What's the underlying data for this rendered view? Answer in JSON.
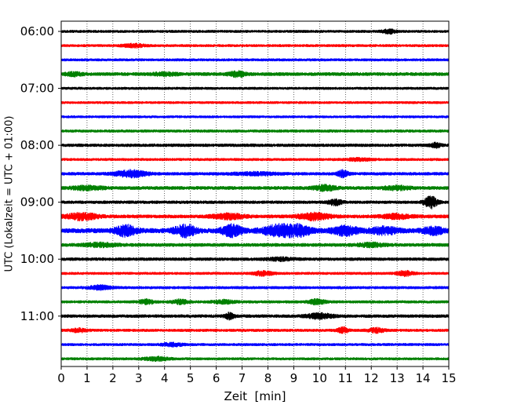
{
  "chart_data": {
    "type": "line",
    "title": "",
    "xlabel": "Zeit  [min]",
    "ylabel": "UTC (Lokalzeit = UTC + 01:00)",
    "xlim": [
      0,
      15
    ],
    "x_ticks": [
      "0",
      "1",
      "2",
      "3",
      "4",
      "5",
      "6",
      "7",
      "8",
      "9",
      "10",
      "11",
      "12",
      "13",
      "14",
      "15"
    ],
    "y_ticks": [
      "06:00",
      "07:00",
      "08:00",
      "09:00",
      "10:00",
      "11:00"
    ],
    "grid": {
      "x": "dotted",
      "y": "none"
    },
    "trace_interval_minutes": 15,
    "color_cycle": [
      "#000000",
      "#ff0000",
      "#0000ff",
      "#008000"
    ],
    "series": [
      {
        "start": "06:00",
        "color": "#000000",
        "amp": 1.5,
        "events": [
          {
            "t": 12.7,
            "a": 2.5,
            "w": 0.25
          }
        ]
      },
      {
        "start": "06:15",
        "color": "#ff0000",
        "amp": 1.5,
        "events": [
          {
            "t": 2.8,
            "a": 2.0,
            "w": 0.4
          }
        ]
      },
      {
        "start": "06:30",
        "color": "#0000ff",
        "amp": 1.5,
        "events": []
      },
      {
        "start": "06:45",
        "color": "#008000",
        "amp": 2.0,
        "events": [
          {
            "t": 0.5,
            "a": 2.0,
            "w": 0.3
          },
          {
            "t": 6.8,
            "a": 3.0,
            "w": 0.3
          },
          {
            "t": 4.0,
            "a": 1.5,
            "w": 0.5
          }
        ]
      },
      {
        "start": "07:00",
        "color": "#000000",
        "amp": 1.5,
        "events": []
      },
      {
        "start": "07:15",
        "color": "#ff0000",
        "amp": 1.4,
        "events": []
      },
      {
        "start": "07:30",
        "color": "#0000ff",
        "amp": 1.4,
        "events": []
      },
      {
        "start": "07:45",
        "color": "#008000",
        "amp": 1.6,
        "events": []
      },
      {
        "start": "08:00",
        "color": "#000000",
        "amp": 1.8,
        "events": [
          {
            "t": 14.5,
            "a": 2.5,
            "w": 0.2
          }
        ]
      },
      {
        "start": "08:15",
        "color": "#ff0000",
        "amp": 1.5,
        "events": [
          {
            "t": 11.5,
            "a": 1.5,
            "w": 0.5
          }
        ]
      },
      {
        "start": "08:30",
        "color": "#0000ff",
        "amp": 1.8,
        "events": [
          {
            "t": 2.7,
            "a": 4.0,
            "w": 0.6
          },
          {
            "t": 10.9,
            "a": 4.0,
            "w": 0.2
          },
          {
            "t": 7.5,
            "a": 1.5,
            "w": 0.8
          }
        ]
      },
      {
        "start": "08:45",
        "color": "#008000",
        "amp": 2.0,
        "events": [
          {
            "t": 1.0,
            "a": 2.0,
            "w": 0.6
          },
          {
            "t": 10.2,
            "a": 3.0,
            "w": 0.4
          },
          {
            "t": 13.0,
            "a": 2.0,
            "w": 0.5
          }
        ]
      },
      {
        "start": "09:00",
        "color": "#000000",
        "amp": 1.8,
        "events": [
          {
            "t": 10.6,
            "a": 3.5,
            "w": 0.25
          },
          {
            "t": 14.3,
            "a": 7.0,
            "w": 0.25
          }
        ]
      },
      {
        "start": "09:15",
        "color": "#ff0000",
        "amp": 2.0,
        "events": [
          {
            "t": 0.8,
            "a": 4.0,
            "w": 0.6
          },
          {
            "t": 6.5,
            "a": 3.0,
            "w": 0.6
          },
          {
            "t": 9.8,
            "a": 4.0,
            "w": 0.6
          },
          {
            "t": 13.0,
            "a": 2.5,
            "w": 0.6
          }
        ]
      },
      {
        "start": "09:30",
        "color": "#0000ff",
        "amp": 2.8,
        "events": [
          {
            "t": 2.5,
            "a": 6.0,
            "w": 0.4
          },
          {
            "t": 4.8,
            "a": 7.0,
            "w": 0.4
          },
          {
            "t": 6.6,
            "a": 6.5,
            "w": 0.4
          },
          {
            "t": 8.4,
            "a": 6.0,
            "w": 0.6
          },
          {
            "t": 9.2,
            "a": 5.5,
            "w": 0.5
          },
          {
            "t": 11.0,
            "a": 5.0,
            "w": 0.5
          },
          {
            "t": 12.5,
            "a": 4.0,
            "w": 0.5
          },
          {
            "t": 14.4,
            "a": 4.0,
            "w": 0.4
          }
        ]
      },
      {
        "start": "09:45",
        "color": "#008000",
        "amp": 2.0,
        "events": [
          {
            "t": 1.5,
            "a": 2.0,
            "w": 0.6
          },
          {
            "t": 12.0,
            "a": 2.0,
            "w": 0.5
          }
        ]
      },
      {
        "start": "10:00",
        "color": "#000000",
        "amp": 1.8,
        "events": [
          {
            "t": 8.5,
            "a": 1.5,
            "w": 0.5
          }
        ]
      },
      {
        "start": "10:15",
        "color": "#ff0000",
        "amp": 1.5,
        "events": [
          {
            "t": 7.8,
            "a": 2.5,
            "w": 0.4
          },
          {
            "t": 13.3,
            "a": 3.0,
            "w": 0.3
          }
        ]
      },
      {
        "start": "10:30",
        "color": "#0000ff",
        "amp": 1.6,
        "events": [
          {
            "t": 1.5,
            "a": 2.5,
            "w": 0.4
          }
        ]
      },
      {
        "start": "10:45",
        "color": "#008000",
        "amp": 1.6,
        "events": [
          {
            "t": 3.3,
            "a": 2.5,
            "w": 0.3
          },
          {
            "t": 4.6,
            "a": 2.5,
            "w": 0.3
          },
          {
            "t": 6.3,
            "a": 2.0,
            "w": 0.4
          },
          {
            "t": 9.9,
            "a": 3.0,
            "w": 0.3
          }
        ]
      },
      {
        "start": "11:00",
        "color": "#000000",
        "amp": 1.8,
        "events": [
          {
            "t": 6.5,
            "a": 3.5,
            "w": 0.2
          },
          {
            "t": 10.0,
            "a": 3.0,
            "w": 0.5
          }
        ]
      },
      {
        "start": "11:15",
        "color": "#ff0000",
        "amp": 1.6,
        "events": [
          {
            "t": 0.7,
            "a": 2.0,
            "w": 0.3
          },
          {
            "t": 10.9,
            "a": 3.5,
            "w": 0.2
          },
          {
            "t": 12.2,
            "a": 2.5,
            "w": 0.3
          }
        ]
      },
      {
        "start": "11:30",
        "color": "#0000ff",
        "amp": 1.5,
        "events": [
          {
            "t": 4.3,
            "a": 2.0,
            "w": 0.4
          }
        ]
      },
      {
        "start": "11:45",
        "color": "#008000",
        "amp": 1.5,
        "events": [
          {
            "t": 3.7,
            "a": 2.0,
            "w": 0.5
          }
        ]
      }
    ]
  }
}
